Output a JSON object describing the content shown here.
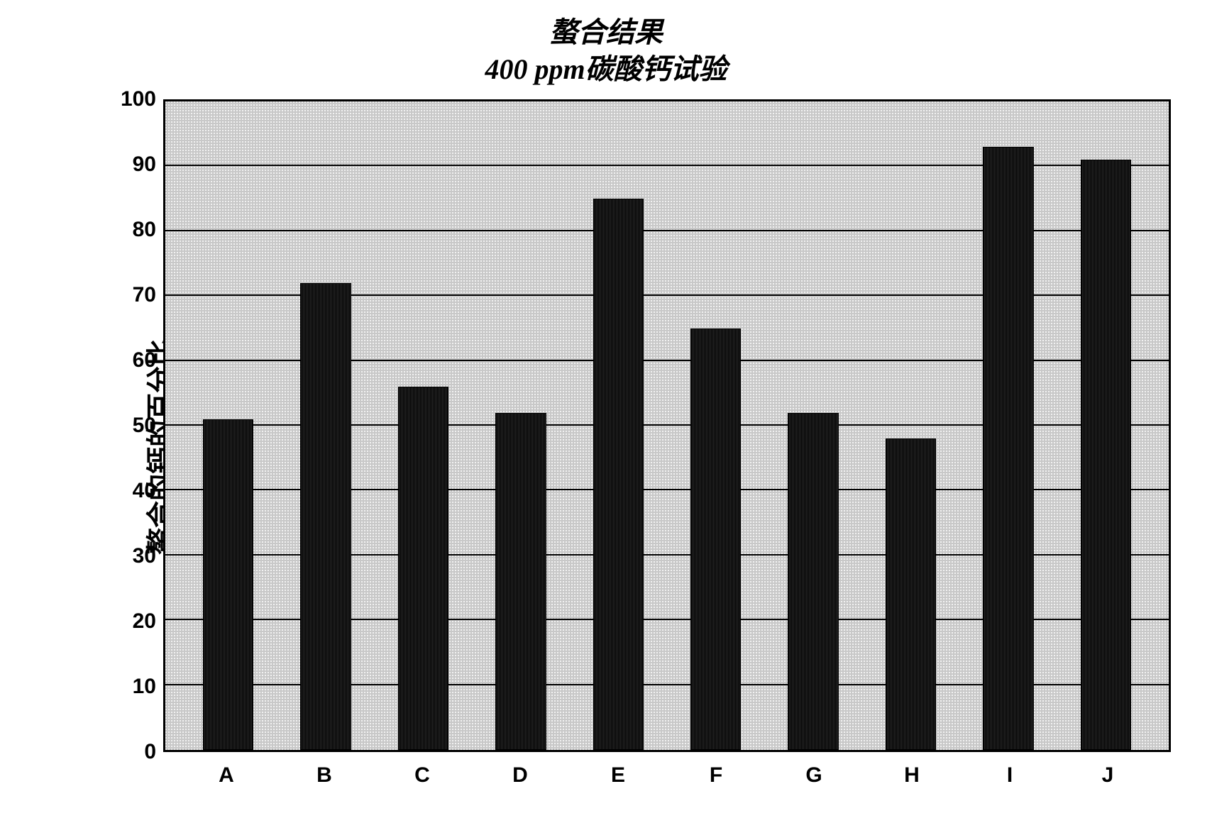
{
  "chart": {
    "type": "bar",
    "title_line1": "螯合结果",
    "title_line2": "400 ppm碳酸钙试验",
    "title_fontsize": 40,
    "ylabel": "螯合的钙的百分比",
    "ylabel_fontsize": 38,
    "categories": [
      "A",
      "B",
      "C",
      "D",
      "E",
      "F",
      "G",
      "H",
      "I",
      "J"
    ],
    "values": [
      51,
      72,
      56,
      52,
      85,
      65,
      52,
      48,
      93,
      91
    ],
    "ylim": [
      0,
      100
    ],
    "ytick_step": 10,
    "yticks": [
      0,
      10,
      20,
      30,
      40,
      50,
      60,
      70,
      80,
      90,
      100
    ],
    "bar_color": "#1a1a1a",
    "bar_width": 0.52,
    "background_color": "#c8c8c8",
    "grid_color": "#000000",
    "border_color": "#000000",
    "tick_fontsize": 30,
    "xlabel_fontsize": 30
  }
}
